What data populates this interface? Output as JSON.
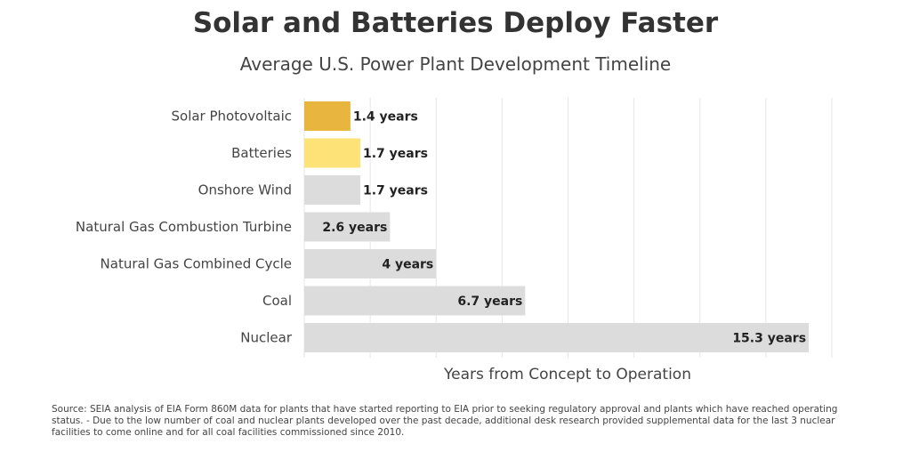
{
  "header": {
    "title": "Solar and Batteries Deploy Faster",
    "subtitle": "Average U.S. Power Plant Development Timeline"
  },
  "chart_data": {
    "type": "bar",
    "orientation": "horizontal",
    "title": "Solar and Batteries Deploy Faster",
    "subtitle": "Average U.S. Power Plant Development Timeline",
    "xlabel": "Years from Concept to Operation",
    "ylabel": "",
    "xlim": [
      0,
      16
    ],
    "grid": "vertical",
    "categories": [
      "Solar Photovoltaic",
      "Batteries",
      "Onshore Wind",
      "Natural Gas Combustion Turbine",
      "Natural Gas Combined Cycle",
      "Coal",
      "Nuclear"
    ],
    "values": [
      1.4,
      1.7,
      1.7,
      2.6,
      4,
      6.7,
      15.3
    ],
    "value_labels": [
      "1.4 years",
      "1.7 years",
      "1.7 years",
      "2.6 years",
      "4 years",
      "6.7 years",
      "15.3 years"
    ],
    "colors": [
      "#e8b63e",
      "#fde377",
      "#dcdcdc",
      "#dcdcdc",
      "#dcdcdc",
      "#dcdcdc",
      "#dcdcdc"
    ]
  },
  "footer": {
    "source": "Source: SEIA analysis of EIA Form 860M data for plants that have started reporting to EIA prior to seeking regulatory approval and plants which have reached operating status. - Due to the low number of coal and nuclear plants developed over the past decade, additional desk research provided supplemental data for the last 3 nuclear facilities to come online and for all coal facilities commissioned since 2010."
  }
}
